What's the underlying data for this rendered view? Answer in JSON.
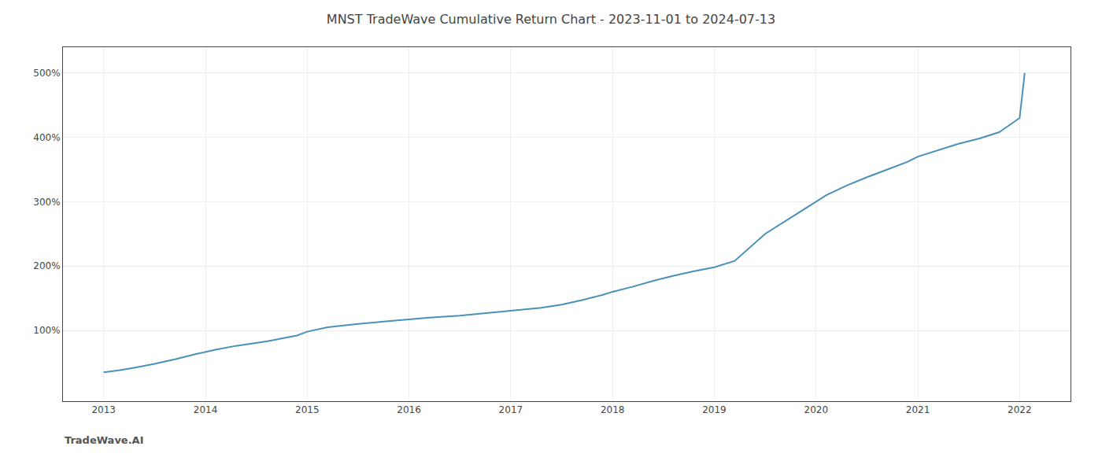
{
  "chart_data": {
    "type": "line",
    "title": "MNST TradeWave Cumulative Return Chart - 2023-11-01 to 2024-07-13",
    "annotations": [
      "TradeWave.AI"
    ],
    "x": [
      2013.0,
      2013.15,
      2013.3,
      2013.5,
      2013.7,
      2013.9,
      2014.1,
      2014.3,
      2014.6,
      2014.9,
      2015.0,
      2015.2,
      2015.5,
      2015.8,
      2016.0,
      2016.2,
      2016.5,
      2016.7,
      2016.9,
      2017.0,
      2017.1,
      2017.3,
      2017.5,
      2017.7,
      2017.9,
      2018.0,
      2018.2,
      2018.4,
      2018.6,
      2018.8,
      2019.0,
      2019.2,
      2019.5,
      2019.7,
      2019.9,
      2020.1,
      2020.3,
      2020.5,
      2020.7,
      2020.9,
      2021.0,
      2021.2,
      2021.4,
      2021.6,
      2021.8,
      2022.0,
      2022.05
    ],
    "values": [
      35,
      38,
      42,
      48,
      55,
      63,
      70,
      76,
      83,
      92,
      98,
      105,
      110,
      114,
      117,
      120,
      123,
      126,
      129,
      131,
      132,
      135,
      140,
      147,
      155,
      160,
      168,
      177,
      185,
      192,
      198,
      208,
      250,
      270,
      290,
      310,
      325,
      338,
      350,
      362,
      370,
      380,
      390,
      398,
      408,
      430,
      500
    ],
    "color": "#4a90b8",
    "xlim": [
      2012.6,
      2022.5
    ],
    "xticks": [
      2013,
      2014,
      2015,
      2016,
      2017,
      2018,
      2019,
      2020,
      2021,
      2022
    ],
    "ylim": [
      -10,
      540
    ],
    "yticks": [
      {
        "value": 100,
        "label": "100%"
      },
      {
        "value": 200,
        "label": "200%"
      },
      {
        "value": 300,
        "label": "300%"
      },
      {
        "value": 400,
        "label": "400%"
      },
      {
        "value": 500,
        "label": "500%"
      }
    ],
    "grid": true
  }
}
